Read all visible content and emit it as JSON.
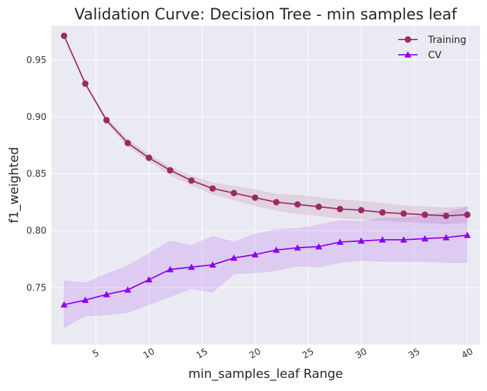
{
  "chart_data": {
    "type": "line",
    "title": "Validation Curve: Decision Tree - min samples leaf",
    "xlabel": "min_samples_leaf Range",
    "ylabel": "f1_weighted",
    "xlim": [
      0.8,
      41.2
    ],
    "ylim": [
      0.7,
      0.98
    ],
    "x_ticks": [
      5,
      10,
      15,
      20,
      25,
      30,
      35,
      40
    ],
    "y_ticks": [
      0.75,
      0.8,
      0.85,
      0.9,
      0.95
    ],
    "x_tick_labels": [
      "5",
      "10",
      "15",
      "20",
      "25",
      "30",
      "35",
      "40"
    ],
    "y_tick_labels": [
      "0.75",
      "0.80",
      "0.85",
      "0.90",
      "0.95"
    ],
    "grid": true,
    "legend_position": "top-right",
    "x": [
      2,
      4,
      6,
      8,
      10,
      12,
      14,
      16,
      18,
      20,
      22,
      24,
      26,
      28,
      30,
      32,
      34,
      36,
      38,
      40
    ],
    "series": [
      {
        "name": "Training",
        "marker": "circle",
        "color": "#9b2a62",
        "values": [
          0.971,
          0.929,
          0.897,
          0.877,
          0.864,
          0.853,
          0.844,
          0.837,
          0.833,
          0.829,
          0.825,
          0.823,
          0.821,
          0.819,
          0.818,
          0.816,
          0.815,
          0.814,
          0.813,
          0.814
        ],
        "lower": [
          0.971,
          0.929,
          0.895,
          0.874,
          0.861,
          0.849,
          0.84,
          0.832,
          0.827,
          0.822,
          0.818,
          0.815,
          0.813,
          0.811,
          0.81,
          0.809,
          0.808,
          0.807,
          0.806,
          0.807
        ],
        "upper": [
          0.971,
          0.929,
          0.899,
          0.88,
          0.867,
          0.856,
          0.848,
          0.842,
          0.839,
          0.836,
          0.832,
          0.831,
          0.829,
          0.827,
          0.826,
          0.824,
          0.822,
          0.821,
          0.82,
          0.821
        ]
      },
      {
        "name": "CV",
        "marker": "triangle",
        "color": "#8a00f0",
        "values": [
          0.735,
          0.739,
          0.744,
          0.748,
          0.757,
          0.766,
          0.768,
          0.77,
          0.776,
          0.779,
          0.783,
          0.785,
          0.786,
          0.79,
          0.791,
          0.792,
          0.792,
          0.793,
          0.794,
          0.796
        ],
        "lower": [
          0.715,
          0.725,
          0.726,
          0.728,
          0.735,
          0.742,
          0.749,
          0.746,
          0.762,
          0.763,
          0.765,
          0.769,
          0.768,
          0.772,
          0.774,
          0.773,
          0.773,
          0.773,
          0.772,
          0.772
        ],
        "upper": [
          0.756,
          0.754,
          0.762,
          0.769,
          0.78,
          0.791,
          0.787,
          0.795,
          0.79,
          0.797,
          0.801,
          0.802,
          0.805,
          0.809,
          0.808,
          0.811,
          0.811,
          0.814,
          0.816,
          0.821
        ]
      }
    ]
  }
}
